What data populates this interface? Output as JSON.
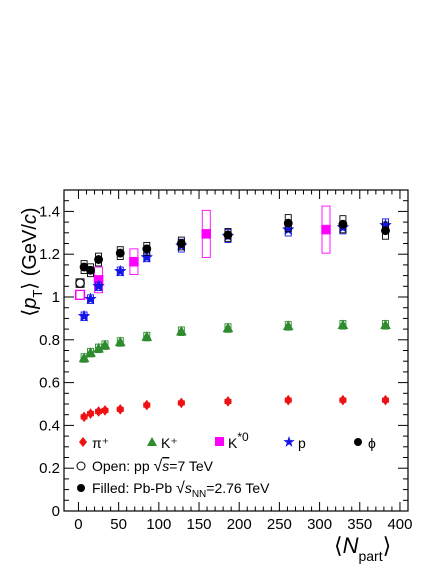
{
  "chart_data": {
    "type": "scatter",
    "xlabel": "⟨N_part⟩",
    "ylabel": "⟨p_T⟩ (GeV/c)",
    "xlim": [
      -18,
      410
    ],
    "ylim": [
      0,
      1.5
    ],
    "x_ticks": [
      0,
      50,
      100,
      150,
      200,
      250,
      300,
      350,
      400
    ],
    "y_ticks": [
      0,
      0.2,
      0.4,
      0.6,
      0.8,
      1,
      1.2,
      1.4
    ],
    "x_tick_labels": [
      "0",
      "50",
      "100",
      "150",
      "200",
      "250",
      "300",
      "350",
      "400"
    ],
    "y_tick_labels": [
      "0",
      "0.2",
      "0.4",
      "0.6",
      "0.8",
      "1",
      "1.2",
      "1.4"
    ],
    "grid": false,
    "series": [
      {
        "name": "π⁺",
        "color": "#ee1111",
        "marker": "diamond",
        "x": [
          7,
          15,
          25,
          33,
          52,
          85,
          128,
          186,
          261,
          329,
          382
        ],
        "y": [
          0.44,
          0.455,
          0.465,
          0.47,
          0.475,
          0.495,
          0.505,
          0.512,
          0.518,
          0.518,
          0.518
        ],
        "syst": [
          0.01,
          0.01,
          0.01,
          0.01,
          0.01,
          0.01,
          0.01,
          0.01,
          0.01,
          0.01,
          0.01
        ],
        "pp": []
      },
      {
        "name": "K⁺",
        "color": "#2e8b2e",
        "marker": "triangle",
        "x": [
          7,
          15,
          25,
          33,
          52,
          85,
          128,
          186,
          261,
          329,
          382
        ],
        "y": [
          0.715,
          0.74,
          0.76,
          0.775,
          0.79,
          0.815,
          0.84,
          0.855,
          0.865,
          0.87,
          0.87
        ],
        "syst": [
          0.02,
          0.02,
          0.02,
          0.02,
          0.02,
          0.02,
          0.02,
          0.02,
          0.02,
          0.02,
          0.02
        ],
        "pp": []
      },
      {
        "name": "K*0",
        "color": "#ff00ff",
        "marker": "square",
        "x": [
          25,
          69,
          159,
          308
        ],
        "y": [
          1.08,
          1.165,
          1.295,
          1.315
        ],
        "syst": [
          0.06,
          0.06,
          0.11,
          0.11
        ],
        "pp": [
          {
            "x": 2,
            "y": 1.01,
            "syst": 0.02
          }
        ]
      },
      {
        "name": "p",
        "color": "#1515e8",
        "marker": "star",
        "x": [
          7,
          15,
          25,
          52,
          85,
          128,
          186,
          261,
          329,
          382
        ],
        "y": [
          0.91,
          0.99,
          1.05,
          1.12,
          1.185,
          1.24,
          1.285,
          1.315,
          1.325,
          1.335
        ],
        "syst": [
          0.02,
          0.02,
          0.02,
          0.02,
          0.02,
          0.03,
          0.03,
          0.03,
          0.03,
          0.03
        ],
        "pp": []
      },
      {
        "name": "ϕ",
        "color": "#000000",
        "marker": "circle",
        "x": [
          7,
          15,
          25,
          52,
          85,
          128,
          186,
          261,
          329,
          382
        ],
        "y": [
          1.14,
          1.125,
          1.175,
          1.205,
          1.225,
          1.25,
          1.29,
          1.345,
          1.34,
          1.31
        ],
        "syst": [
          0.03,
          0.03,
          0.03,
          0.03,
          0.03,
          0.03,
          0.03,
          0.04,
          0.04,
          0.04
        ],
        "pp": [
          {
            "x": 2,
            "y": 1.065,
            "syst": 0.02
          }
        ]
      }
    ],
    "legend": {
      "placement": "bottom",
      "open_label": "Open: pp √s=7 TeV",
      "filled_label": "Filled: Pb-Pb √sNN=2.76 TeV"
    }
  }
}
